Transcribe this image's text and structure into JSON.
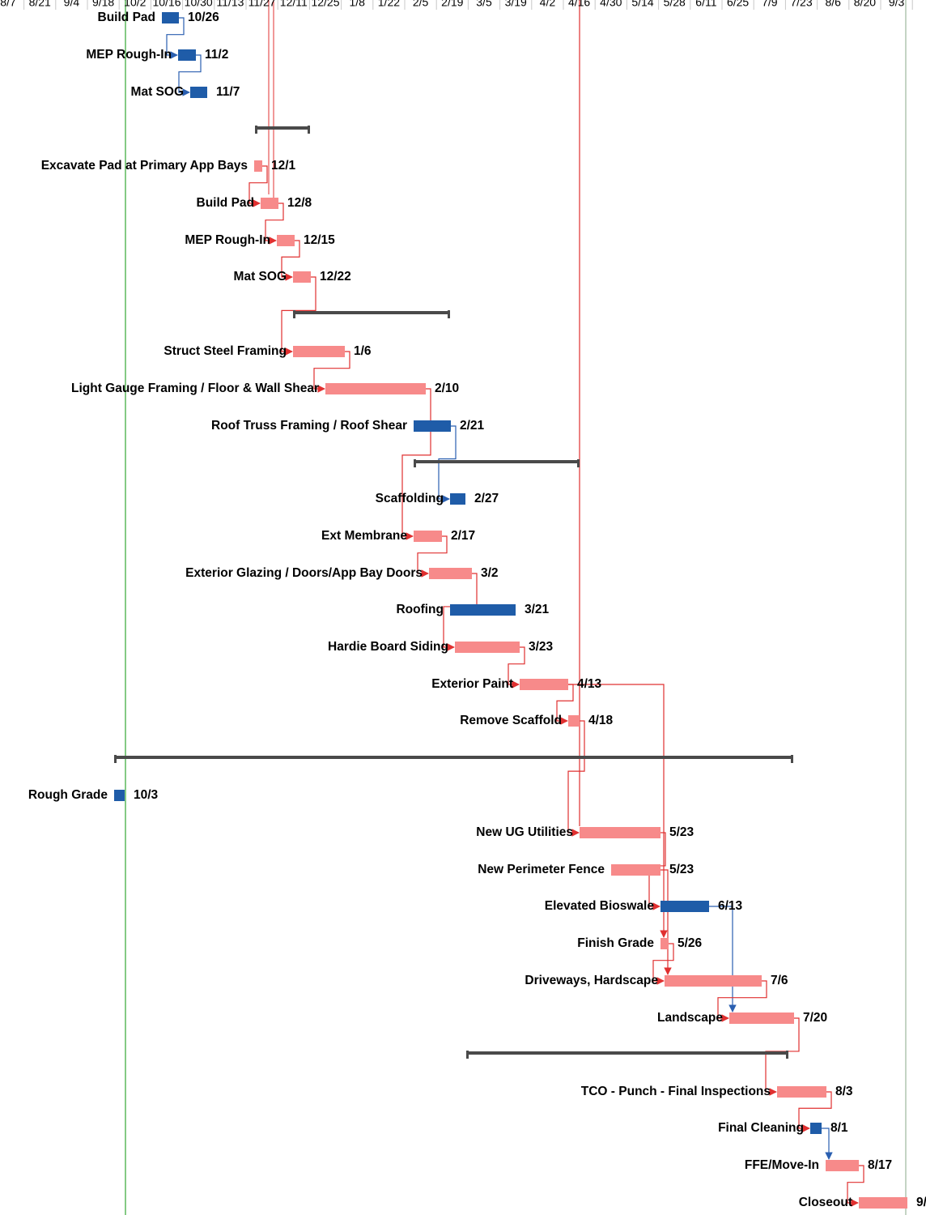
{
  "chart_data": {
    "type": "gantt",
    "timescale": {
      "ticks": [
        "8/7",
        "8/21",
        "9/4",
        "9/18",
        "10/2",
        "10/16",
        "10/30",
        "11/13",
        "11/27",
        "12/11",
        "12/25",
        "1/8",
        "1/22",
        "2/5",
        "2/19",
        "3/5",
        "3/19",
        "4/2",
        "4/16",
        "4/30",
        "5/14",
        "5/28",
        "6/11",
        "6/25",
        "7/9",
        "7/23",
        "8/6",
        "8/20",
        "9/3"
      ]
    },
    "colors": {
      "critical_bar": "#f78a8a",
      "normal_bar": "#1f5ca8",
      "critical_link": "#e03030",
      "normal_link": "#2a5fb0",
      "summary": "#4a4a4a",
      "today_line": "#5cb85c",
      "status_line": "#e03030",
      "grid": "#c8c8c8"
    },
    "tasks": [
      {
        "id": "t1",
        "name": "Build Pad",
        "finish_label": "10/26",
        "critical": false
      },
      {
        "id": "t2",
        "name": "MEP Rough-In",
        "finish_label": "11/2",
        "critical": false
      },
      {
        "id": "t3",
        "name": "Mat SOG",
        "finish_label": "11/7",
        "critical": false
      },
      {
        "id": "s1",
        "name": "",
        "summary": true
      },
      {
        "id": "t4",
        "name": "Excavate Pad at Primary App Bays",
        "finish_label": "12/1",
        "critical": true
      },
      {
        "id": "t5",
        "name": "Build Pad",
        "finish_label": "12/8",
        "critical": true
      },
      {
        "id": "t6",
        "name": "MEP Rough-In",
        "finish_label": "12/15",
        "critical": true
      },
      {
        "id": "t7",
        "name": "Mat SOG",
        "finish_label": "12/22",
        "critical": true
      },
      {
        "id": "s2",
        "name": "",
        "summary": true
      },
      {
        "id": "t8",
        "name": "Struct Steel Framing",
        "finish_label": "1/6",
        "critical": true
      },
      {
        "id": "t9",
        "name": "Light Gauge Framing / Floor & Wall Shear",
        "finish_label": "2/10",
        "critical": true
      },
      {
        "id": "t10",
        "name": "Roof Truss Framing / Roof Shear",
        "finish_label": "2/21",
        "critical": false
      },
      {
        "id": "s3",
        "name": "",
        "summary": true
      },
      {
        "id": "t11",
        "name": "Scaffolding",
        "finish_label": "2/27",
        "critical": false
      },
      {
        "id": "t12",
        "name": "Ext Membrane",
        "finish_label": "2/17",
        "critical": true
      },
      {
        "id": "t13",
        "name": "Exterior Glazing / Doors/App Bay Doors",
        "finish_label": "3/2",
        "critical": true
      },
      {
        "id": "t14",
        "name": "Roofing",
        "finish_label": "3/21",
        "critical": false
      },
      {
        "id": "t15",
        "name": "Hardie Board Siding",
        "finish_label": "3/23",
        "critical": true
      },
      {
        "id": "t16",
        "name": "Exterior Paint",
        "finish_label": "4/13",
        "critical": true
      },
      {
        "id": "t17",
        "name": "Remove Scaffold",
        "finish_label": "4/18",
        "critical": true
      },
      {
        "id": "s4",
        "name": "",
        "summary": true
      },
      {
        "id": "t18",
        "name": "Rough Grade",
        "finish_label": "10/3",
        "critical": false
      },
      {
        "id": "t19",
        "name": "New UG Utilities",
        "finish_label": "5/23",
        "critical": true
      },
      {
        "id": "t20",
        "name": "New Perimeter Fence",
        "finish_label": "5/23",
        "critical": true
      },
      {
        "id": "t21",
        "name": "Elevated Bioswale",
        "finish_label": "6/13",
        "critical": false
      },
      {
        "id": "t22",
        "name": "Finish Grade",
        "finish_label": "5/26",
        "critical": true
      },
      {
        "id": "t23",
        "name": "Driveways, Hardscape",
        "finish_label": "7/6",
        "critical": true
      },
      {
        "id": "t24",
        "name": "Landscape",
        "finish_label": "7/20",
        "critical": true
      },
      {
        "id": "s5",
        "name": "",
        "summary": true
      },
      {
        "id": "t25",
        "name": "TCO - Punch - Final Inspections",
        "finish_label": "8/3",
        "critical": true
      },
      {
        "id": "t26",
        "name": "Final Cleaning",
        "finish_label": "8/1",
        "critical": false
      },
      {
        "id": "t27",
        "name": "FFE/Move-In",
        "finish_label": "8/17",
        "critical": true
      },
      {
        "id": "t28",
        "name": "Closeout",
        "finish_label": "9/",
        "critical": true
      }
    ]
  }
}
